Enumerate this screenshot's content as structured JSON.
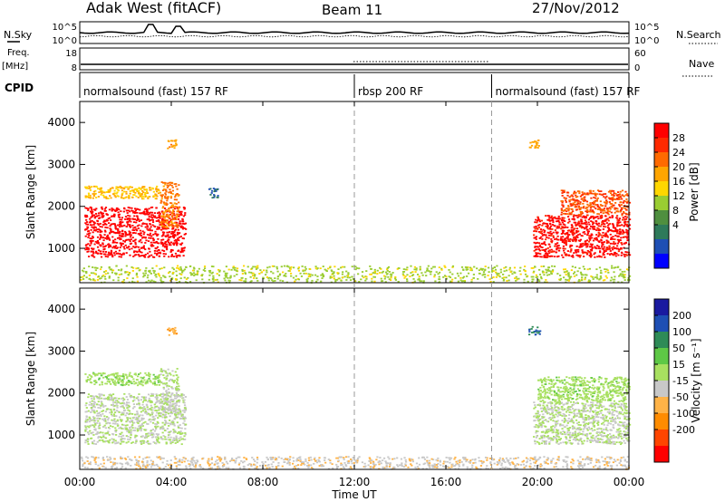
{
  "header": {
    "station": "Adak West (fitACF)",
    "beam": "Beam 11",
    "date": "27/Nov/2012"
  },
  "top_panels": {
    "nsky_label": "N.Sky",
    "nsky_ticks": [
      "10^5",
      "10^0"
    ],
    "nsearch_label": "N.Search",
    "nsearch_ticks": [
      "10^5",
      "10^0"
    ],
    "freq_label_1": "Freq.",
    "freq_label_2": "[MHz]",
    "freq_ticks": [
      "18",
      "8"
    ],
    "nave_label": "Nave",
    "nave_ticks": [
      "60",
      "0"
    ],
    "cpid_label": "CPID"
  },
  "cpid_segments": [
    {
      "label": "normalsound (fast) 157 RF",
      "start_hour": 0,
      "end_hour": 12
    },
    {
      "label": "rbsp 200 RF",
      "start_hour": 12,
      "end_hour": 18
    },
    {
      "label": "normalsound (fast) 157 RF",
      "start_hour": 18,
      "end_hour": 24
    }
  ],
  "x_axis": {
    "title": "Time UT",
    "ticks": [
      "00:00",
      "04:00",
      "08:00",
      "12:00",
      "16:00",
      "20:00",
      "00:00"
    ],
    "range_hours": [
      0,
      24
    ]
  },
  "power_panel": {
    "ylabel": "Slant Range [km]",
    "yticks": [
      "4000",
      "3000",
      "2000",
      "1000"
    ],
    "colorbar_title": "Power [dB]",
    "colorbar_ticks": [
      "28",
      "24",
      "20",
      "16",
      "12",
      "8",
      "4"
    ]
  },
  "velocity_panel": {
    "ylabel": "Slant Range [km]",
    "yticks": [
      "4000",
      "3000",
      "2000",
      "1000"
    ],
    "colorbar_title": "Velocity [m s⁻¹]",
    "colorbar_ticks": [
      "200",
      "100",
      "50",
      "15",
      "-15",
      "-50",
      "-100",
      "-200"
    ]
  },
  "colors": {
    "power_scale": [
      "#0000ff",
      "#1e4fb4",
      "#2e7a5a",
      "#4f8f3f",
      "#9acd32",
      "#ffd700",
      "#ffa500",
      "#ff6a00",
      "#ff2a00",
      "#ff0000"
    ],
    "velocity_scale": [
      "#ff0000",
      "#ff4500",
      "#ff8c00",
      "#ffb347",
      "#c8c8c8",
      "#a8e060",
      "#5ec846",
      "#2e8b57",
      "#1e4fb4",
      "#1a1aa0"
    ]
  },
  "chart_data": [
    {
      "type": "heatmap",
      "title": "Power",
      "xlabel": "Time UT",
      "ylabel": "Slant Range [km]",
      "xlim_hours": [
        0,
        24
      ],
      "ylim_km": [
        180,
        4500
      ],
      "colorbar": "Power [dB]",
      "clim": [
        0,
        30
      ],
      "regions": [
        {
          "t0": 0.2,
          "t1": 4.6,
          "r0": 800,
          "r1": 2000,
          "level": 29
        },
        {
          "t0": 0.2,
          "t1": 3.5,
          "r0": 2200,
          "r1": 2500,
          "level": 18
        },
        {
          "t0": 3.5,
          "t1": 4.3,
          "r0": 1500,
          "r1": 2600,
          "level": 22
        },
        {
          "t0": 3.8,
          "t1": 4.2,
          "r0": 3400,
          "r1": 3600,
          "level": 20
        },
        {
          "t0": 5.6,
          "t1": 6.0,
          "r0": 2200,
          "r1": 2450,
          "level": 6
        },
        {
          "t0": 0.0,
          "t1": 24.0,
          "r0": 200,
          "r1": 600,
          "level": 14
        },
        {
          "t0": 19.8,
          "t1": 24.0,
          "r0": 800,
          "r1": 1800,
          "level": 28
        },
        {
          "t0": 21.0,
          "t1": 24.0,
          "r0": 1800,
          "r1": 2400,
          "level": 24
        },
        {
          "t0": 19.6,
          "t1": 20.1,
          "r0": 3400,
          "r1": 3600,
          "level": 20
        }
      ]
    },
    {
      "type": "heatmap",
      "title": "Velocity",
      "xlabel": "Time UT",
      "ylabel": "Slant Range [km]",
      "xlim_hours": [
        0,
        24
      ],
      "ylim_km": [
        180,
        4500
      ],
      "colorbar": "Velocity [m s⁻¹]",
      "clim": [
        -250,
        250
      ],
      "regions": [
        {
          "t0": 0.2,
          "t1": 4.6,
          "r0": 800,
          "r1": 2000,
          "level": 0
        },
        {
          "t0": 0.2,
          "t1": 3.5,
          "r0": 2200,
          "r1": 2500,
          "level": 30
        },
        {
          "t0": 3.5,
          "t1": 4.3,
          "r0": 1500,
          "r1": 2600,
          "level": 0
        },
        {
          "t0": 3.8,
          "t1": 4.2,
          "r0": 3400,
          "r1": 3600,
          "level": -80
        },
        {
          "t0": 0.0,
          "t1": 24.0,
          "r0": 200,
          "r1": 500,
          "level": -40
        },
        {
          "t0": 19.8,
          "t1": 24.0,
          "r0": 800,
          "r1": 1800,
          "level": 0
        },
        {
          "t0": 20.0,
          "t1": 24.0,
          "r0": 1800,
          "r1": 2400,
          "level": 30
        },
        {
          "t0": 19.6,
          "t1": 20.1,
          "r0": 3400,
          "r1": 3600,
          "level": 150
        }
      ]
    }
  ]
}
